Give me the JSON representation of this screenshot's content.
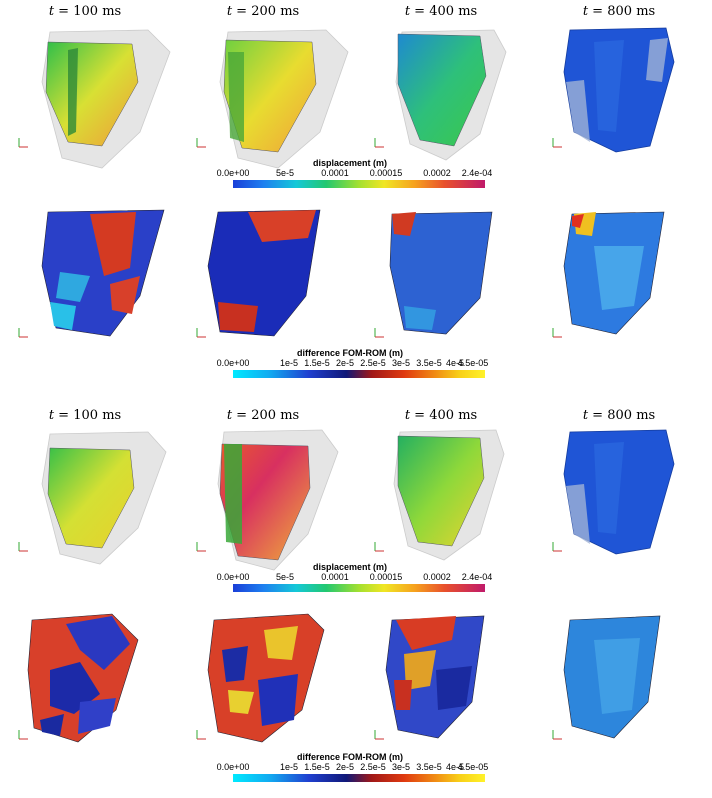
{
  "time_prefix": "t = ",
  "unit": "ms",
  "group1": {
    "titles": [
      "100",
      "200",
      "400",
      "800"
    ]
  },
  "group2": {
    "titles": [
      "100",
      "200",
      "400",
      "800"
    ]
  },
  "colorbar_displacement": {
    "title": "displacement (m)",
    "ticks": [
      "0.0e+00",
      "5e-5",
      "0.0001",
      "0.00015",
      "0.0002",
      "2.4e-04"
    ]
  },
  "colorbar_difference": {
    "title": "difference FOM-ROM (m)",
    "ticks": [
      "0.0e+00",
      "1e-5",
      "1.5e-5",
      "2e-5",
      "2.5e-5",
      "3e-5",
      "3.5e-5",
      "4e-5",
      "4.5e-05"
    ]
  },
  "colors": {
    "ghost": "#c8c8c8",
    "blue_dark": "#1a3fd8",
    "green": "#3ec84a",
    "yellow": "#e8e030",
    "red": "#e03020"
  }
}
